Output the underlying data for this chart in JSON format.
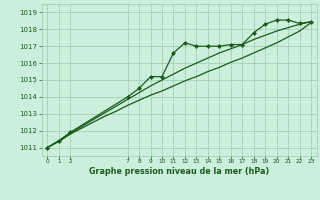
{
  "title": "Graphe pression niveau de la mer (hPa)",
  "bg_color": "#cceedd",
  "grid_color": "#99ccaa",
  "line_color": "#1a5c1a",
  "marker_color": "#1a5c1a",
  "ylim": [
    1010.5,
    1019.5
  ],
  "xlim": [
    -0.5,
    23.5
  ],
  "yticks": [
    1011,
    1012,
    1013,
    1014,
    1015,
    1016,
    1017,
    1018,
    1019
  ],
  "xtick_positions": [
    0,
    1,
    2,
    7,
    8,
    9,
    10,
    11,
    12,
    13,
    14,
    15,
    16,
    17,
    18,
    19,
    20,
    21,
    22,
    23
  ],
  "xtick_labels": [
    "0",
    "1",
    "2",
    "7",
    "8",
    "9",
    "10",
    "11",
    "12",
    "13",
    "14",
    "15",
    "16",
    "17",
    "18",
    "19",
    "20",
    "21",
    "22",
    "23"
  ],
  "series1_x": [
    0,
    1,
    2,
    7,
    8,
    9,
    10,
    11,
    12,
    13,
    14,
    15,
    16,
    17,
    18,
    19,
    20,
    21,
    22,
    23
  ],
  "series1_y": [
    1011.0,
    1011.4,
    1011.9,
    1014.0,
    1014.5,
    1015.2,
    1015.2,
    1016.6,
    1017.2,
    1017.0,
    1017.0,
    1017.0,
    1017.1,
    1017.1,
    1017.8,
    1018.3,
    1018.55,
    1018.55,
    1018.35,
    1018.45
  ],
  "series2_x": [
    0,
    1,
    2,
    3,
    4,
    5,
    6,
    7,
    8,
    9,
    10,
    11,
    12,
    13,
    14,
    15,
    16,
    17,
    18,
    19,
    20,
    21,
    22,
    23
  ],
  "series2_y": [
    1011.0,
    1011.4,
    1011.85,
    1012.25,
    1012.65,
    1013.05,
    1013.45,
    1013.85,
    1014.25,
    1014.65,
    1015.0,
    1015.35,
    1015.7,
    1016.0,
    1016.3,
    1016.6,
    1016.85,
    1017.1,
    1017.4,
    1017.65,
    1017.9,
    1018.1,
    1018.3,
    1018.45
  ],
  "series3_x": [
    0,
    1,
    2,
    3,
    4,
    5,
    6,
    7,
    8,
    9,
    10,
    11,
    12,
    13,
    14,
    15,
    16,
    17,
    18,
    19,
    20,
    21,
    22,
    23
  ],
  "series3_y": [
    1011.0,
    1011.35,
    1011.8,
    1012.15,
    1012.5,
    1012.85,
    1013.15,
    1013.5,
    1013.8,
    1014.1,
    1014.35,
    1014.65,
    1014.95,
    1015.2,
    1015.5,
    1015.75,
    1016.05,
    1016.3,
    1016.6,
    1016.9,
    1017.2,
    1017.55,
    1017.9,
    1018.4
  ]
}
